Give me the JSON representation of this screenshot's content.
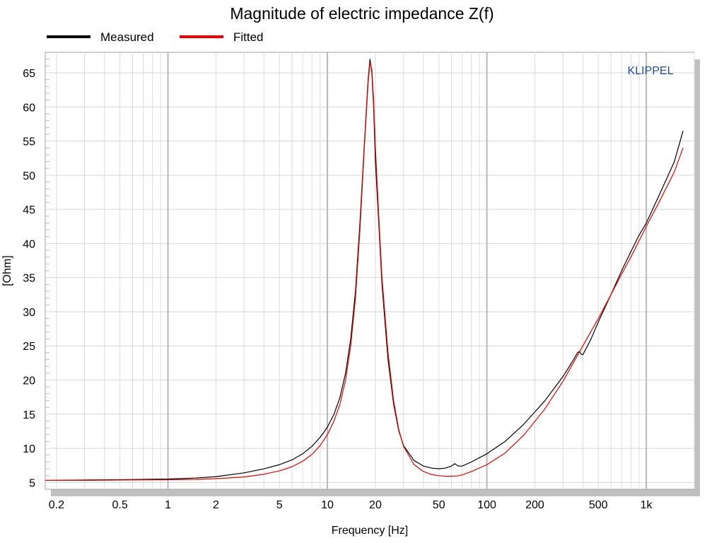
{
  "chart_data": {
    "type": "line",
    "title": "Magnitude of electric impedance Z(f)",
    "xlabel": "Frequency [Hz]",
    "ylabel": "[Ohm]",
    "x_scale": "log",
    "xlim": [
      0.17,
      2000
    ],
    "ylim": [
      4,
      68
    ],
    "x_ticks": [
      {
        "value": 0.2,
        "label": "0.2"
      },
      {
        "value": 0.5,
        "label": "0.5"
      },
      {
        "value": 1,
        "label": "1"
      },
      {
        "value": 2,
        "label": "2"
      },
      {
        "value": 5,
        "label": "5"
      },
      {
        "value": 10,
        "label": "10"
      },
      {
        "value": 20,
        "label": "20"
      },
      {
        "value": 50,
        "label": "50"
      },
      {
        "value": 100,
        "label": "100"
      },
      {
        "value": 200,
        "label": "200"
      },
      {
        "value": 500,
        "label": "500"
      },
      {
        "value": 1000,
        "label": "1k"
      }
    ],
    "y_ticks": [
      {
        "value": 5,
        "label": "5"
      },
      {
        "value": 10,
        "label": "10"
      },
      {
        "value": 15,
        "label": "15"
      },
      {
        "value": 20,
        "label": "20"
      },
      {
        "value": 25,
        "label": "25"
      },
      {
        "value": 30,
        "label": "30"
      },
      {
        "value": 35,
        "label": "35"
      },
      {
        "value": 40,
        "label": "40"
      },
      {
        "value": 45,
        "label": "45"
      },
      {
        "value": 50,
        "label": "50"
      },
      {
        "value": 55,
        "label": "55"
      },
      {
        "value": 60,
        "label": "60"
      },
      {
        "value": 65,
        "label": "65"
      }
    ],
    "grid": true,
    "legend_position": "top-left",
    "annotation": "KLIPPEL",
    "series": [
      {
        "name": "Measured",
        "color": "#000000",
        "x": [
          0.17,
          0.3,
          0.5,
          1,
          1.5,
          2,
          3,
          4,
          5,
          6,
          7,
          8,
          9,
          10,
          11,
          12,
          13,
          14,
          15,
          16,
          17,
          18,
          18.5,
          19,
          19.5,
          20,
          21,
          22,
          24,
          26,
          28,
          30,
          35,
          40,
          45,
          50,
          55,
          60,
          63,
          65,
          67,
          70,
          80,
          100,
          130,
          170,
          230,
          300,
          350,
          370,
          380,
          390,
          400,
          450,
          500,
          600,
          700,
          800,
          900,
          1000,
          1200,
          1500,
          1700
        ],
        "y": [
          5.3,
          5.35,
          5.4,
          5.5,
          5.65,
          5.85,
          6.4,
          7.0,
          7.6,
          8.3,
          9.2,
          10.3,
          11.6,
          13.1,
          15.0,
          17.5,
          21.0,
          26.0,
          33.0,
          43.0,
          54.0,
          64.0,
          67.0,
          65.0,
          60.0,
          52.0,
          43.0,
          34.0,
          23.0,
          16.5,
          12.6,
          10.4,
          8.2,
          7.4,
          7.1,
          7.0,
          7.1,
          7.4,
          7.75,
          7.5,
          7.4,
          7.4,
          8.0,
          9.2,
          11.0,
          13.5,
          16.9,
          20.5,
          23.0,
          24.0,
          24.2,
          23.8,
          23.7,
          26.0,
          28.5,
          32.5,
          36.0,
          38.8,
          41.2,
          43.0,
          47.0,
          52.0,
          56.5
        ]
      },
      {
        "name": "Fitted",
        "color": "#ee0000",
        "x": [
          0.17,
          0.3,
          0.5,
          1,
          1.5,
          2,
          3,
          4,
          5,
          6,
          7,
          8,
          9,
          10,
          11,
          12,
          13,
          14,
          15,
          16,
          17,
          18,
          18.5,
          19,
          19.5,
          20,
          21,
          22,
          24,
          26,
          28,
          30,
          35,
          40,
          45,
          50,
          55,
          60,
          65,
          70,
          80,
          100,
          130,
          170,
          230,
          300,
          400,
          500,
          600,
          700,
          800,
          1000,
          1200,
          1500,
          1700
        ],
        "y": [
          5.3,
          5.3,
          5.35,
          5.4,
          5.45,
          5.55,
          5.8,
          6.2,
          6.7,
          7.3,
          8.1,
          9.1,
          10.4,
          12.0,
          14.0,
          16.5,
          20.0,
          25.0,
          32.0,
          42.0,
          53.5,
          63.5,
          66.5,
          65.5,
          61.0,
          54.0,
          44.0,
          35.0,
          24.0,
          17.0,
          12.8,
          10.3,
          7.6,
          6.6,
          6.15,
          6.0,
          5.9,
          5.9,
          5.95,
          6.1,
          6.6,
          7.6,
          9.3,
          11.9,
          15.7,
          19.8,
          25.0,
          29.0,
          32.5,
          35.5,
          38.0,
          42.5,
          46.0,
          50.5,
          54.0
        ]
      }
    ]
  }
}
